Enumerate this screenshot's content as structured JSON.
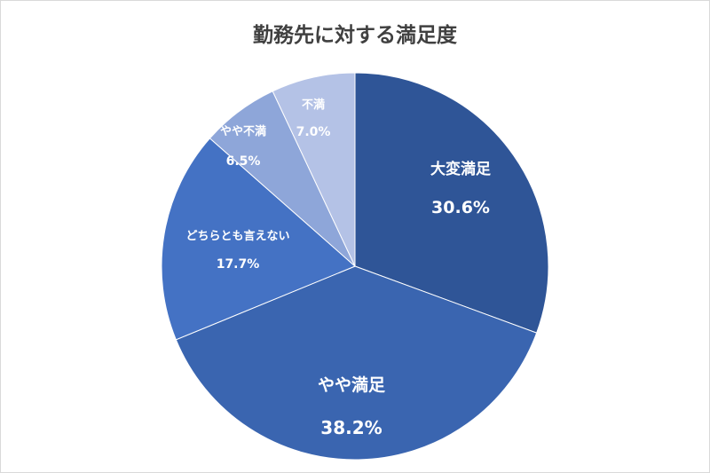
{
  "chart_data": {
    "type": "pie",
    "title": "勤務先に対する満足度",
    "start_angle_deg": 0,
    "direction": "clockwise",
    "slices": [
      {
        "label": "大変満足",
        "value": 30.6,
        "value_label": "30.6%",
        "color": "#2f5597"
      },
      {
        "label": "やや満足",
        "value": 38.2,
        "value_label": "38.2%",
        "color": "#3a65b0"
      },
      {
        "label": "どちらとも言えない",
        "value": 17.7,
        "value_label": "17.7%",
        "color": "#4472c4"
      },
      {
        "label": "やや不満",
        "value": 6.5,
        "value_label": "6.5%",
        "color": "#8ea6d9"
      },
      {
        "label": "不満",
        "value": 7.0,
        "value_label": "7.0%",
        "color": "#b4c2e6"
      }
    ],
    "legend": "none"
  }
}
